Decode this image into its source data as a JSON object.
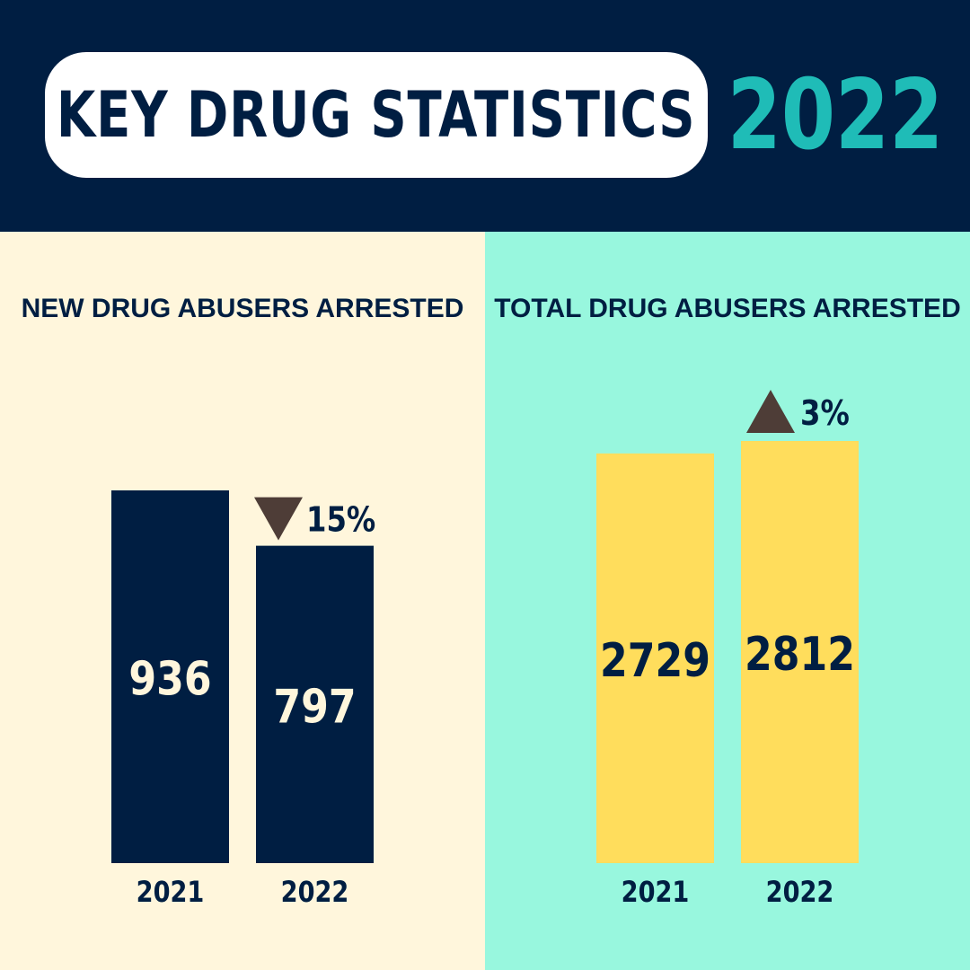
{
  "header": {
    "title": "KEY DRUG STATISTICS",
    "year": "2022"
  },
  "colors": {
    "header_bg": "#001e42",
    "title_pill": "#ffffff",
    "year_accent": "#1fbcb7",
    "left_panel_bg": "#fff6dc",
    "right_panel_bg": "#98f7de",
    "navy": "#001e42",
    "yellow": "#ffdd5c",
    "arrow": "#4e3d37",
    "cream_text": "#fff6dc"
  },
  "chart_data": [
    {
      "type": "bar",
      "title": "NEW DRUG ABUSERS ARRESTED",
      "categories": [
        "2021",
        "2022"
      ],
      "values": [
        936,
        797
      ],
      "value_labels": [
        "936",
        "797"
      ],
      "change": {
        "direction": "down",
        "label": "15%",
        "at_category": "2022"
      },
      "bar_color": "#001e42",
      "value_text_color": "#fff6dc",
      "background": "#fff6dc"
    },
    {
      "type": "bar",
      "title": "TOTAL DRUG ABUSERS ARRESTED",
      "categories": [
        "2021",
        "2022"
      ],
      "values": [
        2729,
        2812
      ],
      "value_labels": [
        "2729",
        "2812"
      ],
      "change": {
        "direction": "up",
        "label": "3%",
        "at_category": "2022"
      },
      "bar_color": "#ffdd5c",
      "value_text_color": "#001e42",
      "background": "#98f7de"
    }
  ]
}
